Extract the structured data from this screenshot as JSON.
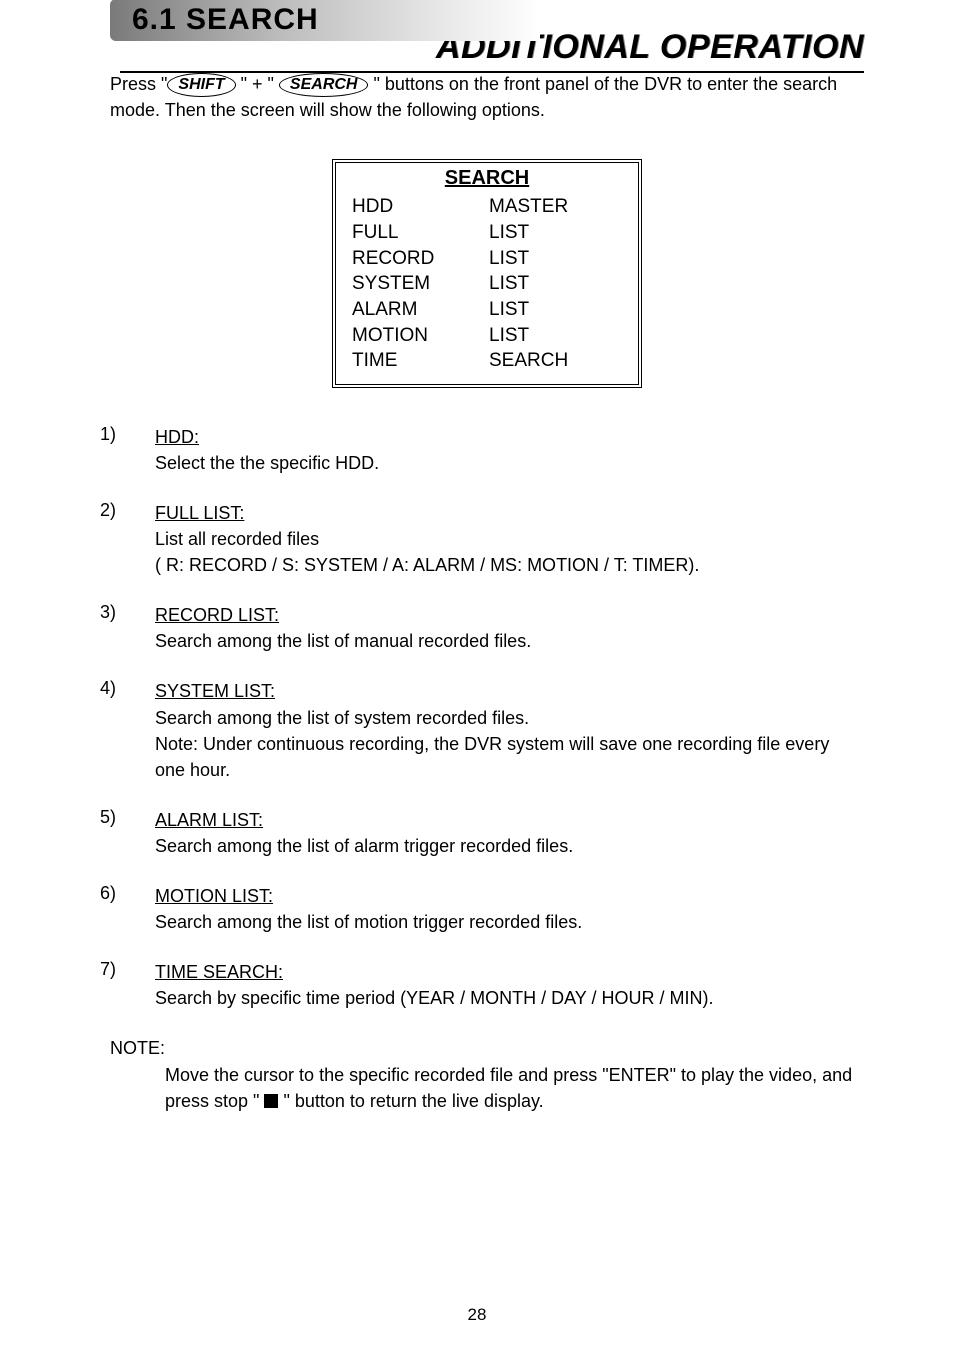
{
  "header": {
    "chapter_title": "ADDITIONAL OPERATION",
    "section_label": "6.1 SEARCH"
  },
  "intro": {
    "press_prefix": "Press \"",
    "key1": "SHIFT",
    "mid": " \" + \" ",
    "key2": "SEARCH",
    "suffix": " \" buttons on the front panel of the DVR to enter the search mode. Then the screen will show the following options."
  },
  "search_table": {
    "title": "SEARCH",
    "rows": [
      {
        "col1": "HDD",
        "col2": "MASTER"
      },
      {
        "col1": "FULL",
        "col2": "LIST"
      },
      {
        "col1": "RECORD",
        "col2": "LIST"
      },
      {
        "col1": "SYSTEM",
        "col2": "LIST"
      },
      {
        "col1": "ALARM",
        "col2": "LIST"
      },
      {
        "col1": "MOTION",
        "col2": "LIST"
      },
      {
        "col1": "TIME",
        "col2": "SEARCH"
      }
    ]
  },
  "items": [
    {
      "num": "1)",
      "heading": "HDD:",
      "lines": [
        "Select the the specific HDD."
      ]
    },
    {
      "num": "2)",
      "heading": "FULL LIST:",
      "lines": [
        "List all recorded files",
        "( R: RECORD / S: SYSTEM / A: ALARM / MS: MOTION / T: TIMER)."
      ]
    },
    {
      "num": "3)",
      "heading": "RECORD LIST:",
      "lines": [
        "Search among the list of manual recorded files."
      ]
    },
    {
      "num": "4)",
      "heading": "SYSTEM LIST:",
      "lines": [
        "Search among the list of system recorded files.",
        "Note: Under continuous recording, the DVR system will save one recording file every one hour."
      ]
    },
    {
      "num": "5)",
      "heading": "ALARM LIST:",
      "lines": [
        "Search among the list of alarm trigger recorded files."
      ]
    },
    {
      "num": "6)",
      "heading": "MOTION LIST:",
      "lines": [
        "Search among the list of motion trigger recorded files."
      ]
    },
    {
      "num": "7)",
      "heading": "TIME SEARCH:",
      "lines": [
        "Search by specific time period (YEAR / MONTH / DAY / HOUR / MIN)."
      ]
    }
  ],
  "note": {
    "label": "NOTE:",
    "line1_a": "Move the cursor to the specific recorded file and press \"ENTER\" to play the video, and press stop \" ",
    "line1_b": " \" button to return the live display."
  },
  "page_number": "28"
}
